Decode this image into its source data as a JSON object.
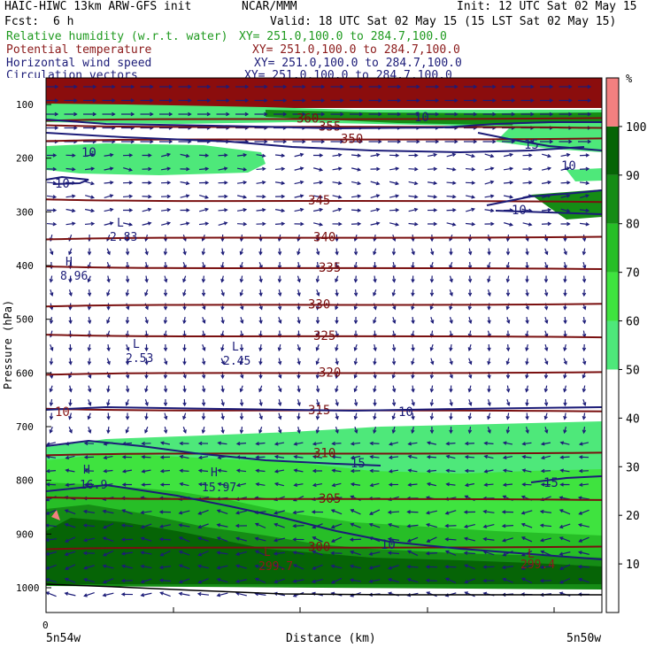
{
  "header": {
    "model": "HAIC-HIWC 13km ARW-GFS init",
    "org": "NCAR/MMM",
    "init": "Init: 12 UTC Sat 02 May 15",
    "fcst_label": "Fcst:",
    "fcst_value": "6 h",
    "valid": "Valid: 18 UTC Sat 02 May 15 (15 LST Sat 02 May 15)"
  },
  "fields": [
    {
      "name": "Relative humidity (w.r.t. water)",
      "xy": "XY= 251.0,100.0 to 284.7,100.0",
      "color": "#1f9a1f"
    },
    {
      "name": "Potential temperature",
      "xy": "XY= 251.0,100.0 to 284.7,100.0",
      "color": "#8b1a1a"
    },
    {
      "name": "Horizontal wind speed",
      "xy": "XY= 251.0,100.0 to 284.7,100.0",
      "color": "#1c1c78"
    },
    {
      "name": "Circulation vectors",
      "xy": "XY= 251.0,100.0 to 284.7,100.0",
      "color": "#1c1c78"
    }
  ],
  "chart_data": {
    "type": "heatmap",
    "xlabel": "Distance (km)",
    "ylabel": "Pressure (hPa)",
    "x_start_label": "5n54w",
    "x_end_label": "5n50w",
    "x_zero_label": "0",
    "y_ticks": [
      100,
      200,
      300,
      400,
      500,
      600,
      700,
      800,
      900,
      1000
    ],
    "y_range_hpa": [
      1050,
      70
    ],
    "colorbar": {
      "unit": "%",
      "ticks": [
        10,
        20,
        30,
        40,
        50,
        60,
        70,
        80,
        90,
        100
      ],
      "colors": [
        "#ffffff",
        "#ffffff",
        "#ffffff",
        "#ffffff",
        "#ffffff",
        "#4ee87a",
        "#3fe33f",
        "#27be27",
        "#158c15",
        "#066406",
        "#f28080"
      ]
    },
    "theta_contours": [
      {
        "label": "360",
        "p": 127
      },
      {
        "label": "355",
        "p": 142
      },
      {
        "label": "350",
        "p": 165
      },
      {
        "label": "345",
        "p": 280
      },
      {
        "label": "340",
        "p": 348
      },
      {
        "label": "335",
        "p": 405
      },
      {
        "label": "330",
        "p": 473
      },
      {
        "label": "325",
        "p": 532
      },
      {
        "label": "320",
        "p": 600
      },
      {
        "label": "315",
        "p": 670
      },
      {
        "label": "310",
        "p": 750
      },
      {
        "label": "305",
        "p": 835
      },
      {
        "label": "300",
        "p": 925
      }
    ],
    "wind_speed_labels": [
      "10",
      "10",
      "15",
      "10",
      "10",
      "10",
      "10",
      "10",
      "15",
      "15",
      "10"
    ],
    "extrema": [
      {
        "type": "L",
        "value": "2.83"
      },
      {
        "type": "H",
        "value": "8.96"
      },
      {
        "type": "L",
        "value": "2.53"
      },
      {
        "type": "L",
        "value": "2.45"
      },
      {
        "type": "H",
        "value": "16.9"
      },
      {
        "type": "H",
        "value": "15.97"
      },
      {
        "type": "L",
        "value": "299.7"
      },
      {
        "type": "L",
        "value": "299.4"
      }
    ]
  }
}
